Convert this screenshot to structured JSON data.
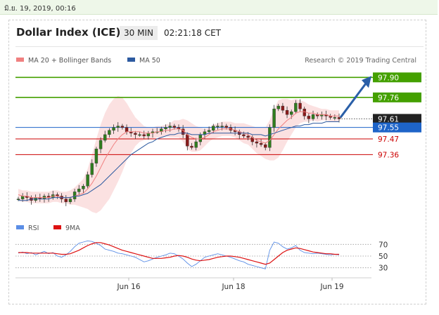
{
  "timestamp": "มิ.ย. 19, 2019, 00:16",
  "header": {
    "title": "Dollar Index (ICE)",
    "interval": "30 MIN",
    "time": "02:21:18 CET"
  },
  "legend": {
    "ma20": "MA 20 + Bollinger Bands",
    "ma50": "MA 50",
    "research": "Research © 2019 Trading Central"
  },
  "rsi_legend": {
    "rsi": "RSI",
    "ma9": "9MA"
  },
  "colors": {
    "green": "#44a000",
    "red": "#cc0000",
    "blue": "#1e64c8",
    "dark": "#222222",
    "arrow": "#2a5fa8",
    "band": "#fadcdc"
  },
  "chart_data": [
    {
      "type": "line",
      "title": "Dollar Index (ICE)",
      "x_ticks": [
        "Jun 16",
        "Jun 18",
        "Jun 19"
      ],
      "ylim": [
        96.95,
        97.98
      ],
      "levels": [
        {
          "value": 97.9,
          "label": "97.90",
          "kind": "resistance"
        },
        {
          "value": 97.76,
          "label": "97.76",
          "kind": "resistance"
        },
        {
          "value": 97.61,
          "label": "97.61",
          "kind": "last"
        },
        {
          "value": 97.55,
          "label": "97.55",
          "kind": "pivot"
        },
        {
          "value": 97.47,
          "label": "97.47",
          "kind": "support"
        },
        {
          "value": 97.36,
          "label": "97.36",
          "kind": "support"
        }
      ],
      "price": [
        97.05,
        97.07,
        97.06,
        97.04,
        97.06,
        97.05,
        97.07,
        97.06,
        97.08,
        97.07,
        97.05,
        97.03,
        97.05,
        97.1,
        97.12,
        97.14,
        97.22,
        97.3,
        97.4,
        97.46,
        97.5,
        97.53,
        97.55,
        97.56,
        97.55,
        97.52,
        97.51,
        97.5,
        97.5,
        97.49,
        97.51,
        97.52,
        97.52,
        97.54,
        97.55,
        97.56,
        97.55,
        97.54,
        97.5,
        97.42,
        97.41,
        97.45,
        97.5,
        97.52,
        97.53,
        97.56,
        97.56,
        97.56,
        97.55,
        97.53,
        97.52,
        97.5,
        97.49,
        97.48,
        97.45,
        97.44,
        97.43,
        97.41,
        97.55,
        97.68,
        97.7,
        97.67,
        97.64,
        97.66,
        97.72,
        97.68,
        97.63,
        97.61,
        97.64,
        97.63,
        97.64,
        97.63,
        97.62,
        97.62,
        97.61
      ],
      "ma20": [
        97.08,
        97.07,
        97.07,
        97.06,
        97.06,
        97.06,
        97.06,
        97.06,
        97.07,
        97.07,
        97.06,
        97.06,
        97.06,
        97.07,
        97.08,
        97.09,
        97.12,
        97.16,
        97.21,
        97.27,
        97.33,
        97.38,
        97.43,
        97.47,
        97.5,
        97.52,
        97.52,
        97.52,
        97.52,
        97.51,
        97.51,
        97.51,
        97.52,
        97.52,
        97.53,
        97.53,
        97.54,
        97.54,
        97.53,
        97.5,
        97.48,
        97.47,
        97.47,
        97.48,
        97.5,
        97.52,
        97.53,
        97.54,
        97.54,
        97.54,
        97.53,
        97.52,
        97.51,
        97.5,
        97.48,
        97.46,
        97.45,
        97.44,
        97.46,
        97.5,
        97.54,
        97.57,
        97.6,
        97.62,
        97.65,
        97.66,
        97.66,
        97.65,
        97.65,
        97.64,
        97.64,
        97.64,
        97.63,
        97.63,
        97.63
      ],
      "bb_width": [
        0.04,
        0.04,
        0.04,
        0.04,
        0.04,
        0.04,
        0.04,
        0.04,
        0.04,
        0.04,
        0.04,
        0.04,
        0.05,
        0.06,
        0.08,
        0.1,
        0.14,
        0.2,
        0.26,
        0.3,
        0.32,
        0.33,
        0.32,
        0.3,
        0.26,
        0.2,
        0.15,
        0.1,
        0.07,
        0.05,
        0.04,
        0.04,
        0.04,
        0.04,
        0.04,
        0.05,
        0.06,
        0.06,
        0.08,
        0.1,
        0.1,
        0.09,
        0.08,
        0.06,
        0.05,
        0.05,
        0.05,
        0.05,
        0.05,
        0.05,
        0.05,
        0.06,
        0.07,
        0.07,
        0.08,
        0.09,
        0.1,
        0.11,
        0.14,
        0.18,
        0.2,
        0.18,
        0.15,
        0.12,
        0.1,
        0.08,
        0.07,
        0.06,
        0.05,
        0.05,
        0.04,
        0.04,
        0.04,
        0.04,
        0.04
      ],
      "ma50": [
        97.04,
        97.04,
        97.04,
        97.05,
        97.05,
        97.05,
        97.05,
        97.05,
        97.06,
        97.06,
        97.06,
        97.06,
        97.06,
        97.07,
        97.07,
        97.08,
        97.09,
        97.11,
        97.13,
        97.15,
        97.18,
        97.21,
        97.24,
        97.27,
        97.3,
        97.33,
        97.36,
        97.38,
        97.4,
        97.42,
        97.44,
        97.45,
        97.47,
        97.48,
        97.49,
        97.5,
        97.5,
        97.51,
        97.51,
        97.51,
        97.5,
        97.5,
        97.5,
        97.5,
        97.51,
        97.51,
        97.51,
        97.51,
        97.51,
        97.51,
        97.51,
        97.51,
        97.51,
        97.51,
        97.5,
        97.5,
        97.5,
        97.49,
        97.5,
        97.51,
        97.52,
        97.53,
        97.54,
        97.55,
        97.56,
        97.56,
        97.57,
        97.57,
        97.58,
        97.58,
        97.58,
        97.59,
        97.59,
        97.59,
        97.59
      ]
    },
    {
      "type": "line",
      "title": "RSI",
      "y_ticks": [
        70,
        50,
        30
      ],
      "ylim": [
        20,
        80
      ],
      "series": [
        {
          "name": "RSI",
          "values": [
            55,
            57,
            54,
            56,
            52,
            55,
            58,
            54,
            56,
            50,
            48,
            52,
            58,
            66,
            72,
            74,
            76,
            75,
            72,
            68,
            62,
            60,
            58,
            55,
            54,
            52,
            50,
            48,
            44,
            40,
            42,
            45,
            48,
            50,
            52,
            55,
            54,
            50,
            45,
            38,
            32,
            36,
            42,
            48,
            50,
            52,
            54,
            52,
            50,
            48,
            45,
            42,
            40,
            36,
            34,
            32,
            30,
            28,
            60,
            74,
            72,
            66,
            62,
            64,
            68,
            60,
            56,
            55,
            54,
            55,
            54,
            53,
            52,
            53,
            52
          ]
        },
        {
          "name": "9MA",
          "values": [
            56,
            56,
            56,
            55,
            55,
            55,
            55,
            55,
            55,
            54,
            53,
            53,
            54,
            57,
            60,
            64,
            68,
            71,
            73,
            73,
            71,
            69,
            66,
            63,
            60,
            58,
            56,
            54,
            52,
            50,
            48,
            46,
            46,
            46,
            47,
            48,
            50,
            51,
            50,
            48,
            45,
            43,
            42,
            43,
            44,
            46,
            48,
            49,
            50,
            50,
            49,
            48,
            46,
            44,
            42,
            40,
            38,
            36,
            38,
            44,
            50,
            56,
            60,
            62,
            64,
            63,
            61,
            59,
            57,
            56,
            55,
            54,
            54,
            53,
            53
          ]
        }
      ]
    }
  ]
}
